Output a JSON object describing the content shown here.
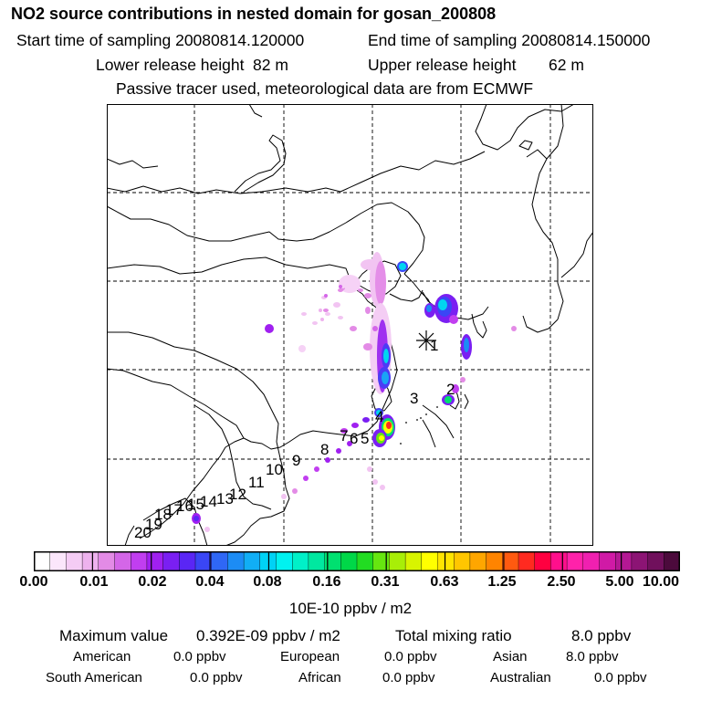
{
  "header": {
    "title": "NO2 source contributions in nested domain for gosan_200808",
    "start_label": "Start time of sampling 20080814.120000",
    "end_label": "End time of sampling 20080814.150000",
    "lower_label": "Lower release height",
    "lower_value": "82 m",
    "upper_label": "Upper release height",
    "upper_value": "62 m",
    "tracer_note": "Passive tracer used, meteorological data are from ECMWF"
  },
  "map": {
    "release_point_number": "1",
    "site_labels": [
      "1",
      "2",
      "3",
      "4",
      "5",
      "6",
      "7",
      "8",
      "9",
      "10",
      "11",
      "12",
      "13",
      "14",
      "15",
      "16",
      "17",
      "18",
      "19",
      "20"
    ]
  },
  "colorbar": {
    "tick_labels": [
      "0.00",
      "0.01",
      "0.02",
      "0.04",
      "0.08",
      "0.16",
      "0.31",
      "0.63",
      "1.25",
      "2.50",
      "5.00",
      "10.00"
    ],
    "unit": "10E-10 ppbv / m2",
    "colors": [
      "#ffffff",
      "#fbe6fb",
      "#f5ccf5",
      "#eeb2ee",
      "#e38be6",
      "#d466e8",
      "#c13ef0",
      "#a020f0",
      "#7a1ff2",
      "#5a26f5",
      "#3a46f5",
      "#2f67f5",
      "#1c8cf5",
      "#11aef5",
      "#00d2f5",
      "#00f2f0",
      "#00f0c8",
      "#00e8a0",
      "#00e070",
      "#00d848",
      "#22dc22",
      "#66e610",
      "#a8ee08",
      "#d8f400",
      "#ffff00",
      "#ffe400",
      "#ffc600",
      "#ffa600",
      "#ff8400",
      "#ff5a10",
      "#ff2a20",
      "#ff0040",
      "#ff0f8c",
      "#ff22aa",
      "#f020b0",
      "#d01aa6",
      "#b41894",
      "#8c1474",
      "#70105c",
      "#4c0a3c"
    ]
  },
  "summary": {
    "max_label": "Maximum value",
    "max_value": "0.392E-09 ppbv / m2",
    "total_label": "Total mixing ratio",
    "total_value": "8.0 ppbv",
    "regions": [
      {
        "name": "American",
        "value": "0.0 ppbv"
      },
      {
        "name": "European",
        "value": "0.0 ppbv"
      },
      {
        "name": "Asian",
        "value": "8.0 ppbv"
      },
      {
        "name": "South American",
        "value": "0.0 ppbv"
      },
      {
        "name": "African",
        "value": "0.0 ppbv"
      },
      {
        "name": "Australian",
        "value": "0.0 ppbv"
      }
    ]
  }
}
